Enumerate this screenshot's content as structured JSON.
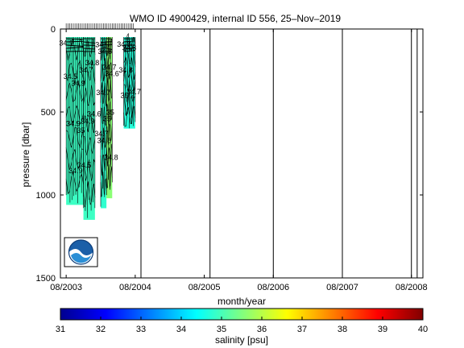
{
  "chart_data": [
    {
      "type": "area",
      "title": "WMO ID 4900429, internal ID 556, 25–Nov–2019",
      "xlabel": "month/year",
      "ylabel": "pressure [dbar]",
      "x_tick_labels": [
        "08/2003",
        "08/2004",
        "08/2005",
        "08/2006",
        "08/2007",
        "08/2008"
      ],
      "x_tick_dates": [
        "2003-08",
        "2004-08",
        "2005-08",
        "2006-08",
        "2007-08",
        "2008-08"
      ],
      "xlim": [
        "2003-07",
        "2008-10"
      ],
      "y_tick_labels": [
        "0",
        "500",
        "1000",
        "1500"
      ],
      "y_ticks": [
        0,
        500,
        1000,
        1500
      ],
      "ylim": [
        0,
        1500
      ],
      "y_reversed": true,
      "grid": false,
      "colormap_field": "salinity [psu]",
      "series": [
        {
          "profiles_start": "2003-08",
          "profiles_end": "2003-11",
          "max_pressure": 1060,
          "salinity": 34.9
        },
        {
          "profiles_start": "2003-11",
          "profiles_end": "2004-01",
          "max_pressure": 1150,
          "salinity": 34.9
        },
        {
          "profiles_start": "2004-02",
          "profiles_end": "2004-03",
          "max_pressure": 1080,
          "salinity": 34.8
        },
        {
          "profiles_start": "2004-03",
          "profiles_end": "2004-04",
          "max_pressure": 1020,
          "salinity": 35.6
        },
        {
          "profiles_start": "2004-06",
          "profiles_end": "2004-08",
          "max_pressure": 600,
          "salinity": 34.7
        }
      ],
      "annotations": [
        "34.9",
        "34.9",
        "34.8",
        "35",
        "34.8",
        "35",
        "34.7",
        "34.8",
        "34.6",
        "35.2",
        "34.9",
        "34.5",
        "34.7",
        "34.8",
        "34.8",
        "34.9",
        "34.6",
        "34.5",
        "35",
        "34.8",
        "34.9",
        "34.8",
        "34.7",
        "34.7",
        "34.7",
        "34.5"
      ],
      "data_gap_lines": [
        "2004-09",
        "2005-09",
        "2006-08",
        "2007-08",
        "2008-08",
        "2008-09"
      ],
      "logo": "NOAA"
    },
    {
      "type": "heatmap",
      "title": "",
      "xlabel": "salinity [psu]",
      "ticks": [
        "31",
        "32",
        "33",
        "34",
        "35",
        "36",
        "37",
        "38",
        "39",
        "40"
      ],
      "range": [
        31,
        40
      ],
      "colors": [
        "#00008f",
        "#0000ff",
        "#0080ff",
        "#00ffff",
        "#80ff80",
        "#ffff00",
        "#ff8000",
        "#ff0000",
        "#800000"
      ]
    }
  ]
}
